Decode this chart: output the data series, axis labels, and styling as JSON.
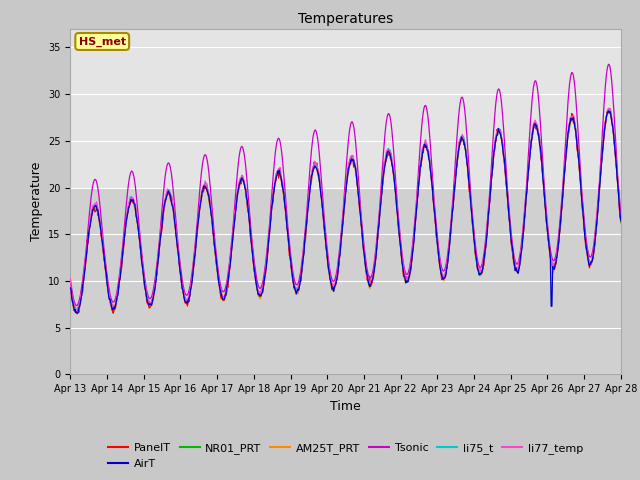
{
  "title": "Temperatures",
  "xlabel": "Time",
  "ylabel": "Temperature",
  "ylim": [
    0,
    37
  ],
  "yticks": [
    0,
    5,
    10,
    15,
    20,
    25,
    30,
    35
  ],
  "n_days": 15,
  "annotation_text": "HS_met",
  "annotation_color": "#8b0000",
  "annotation_bg": "#ffff99",
  "annotation_border": "#aa8800",
  "series_colors": {
    "PanelT": "#ff0000",
    "AirT": "#0000cc",
    "NR01_PRT": "#00bb00",
    "AM25T_PRT": "#ff8800",
    "Tsonic": "#cc00cc",
    "li75_t": "#00cccc",
    "li77_temp": "#ff44cc"
  },
  "fig_bg": "#c8c8c8",
  "plot_bg_upper": "#e8e8e8",
  "plot_bg_lower": "#d8d8d8",
  "grid_color": "#ffffff",
  "xticklabels": [
    "Apr 13",
    "Apr 14",
    "Apr 15",
    "Apr 16",
    "Apr 17",
    "Apr 18",
    "Apr 19",
    "Apr 20",
    "Apr 21",
    "Apr 22",
    "Apr 23",
    "Apr 24",
    "Apr 25",
    "Apr 26",
    "Apr 27",
    "Apr 28"
  ]
}
